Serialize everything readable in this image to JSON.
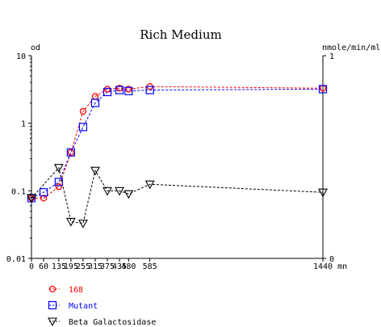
{
  "chart_data": {
    "type": "line",
    "title": "Rich Medium",
    "left_axis_label": "od",
    "right_axis_label": "nmole/min/ml",
    "x_unit": "mn",
    "y_scale_left": "log",
    "ylim_left": [
      0.01,
      10
    ],
    "yticks_left": [
      {
        "value": 0.01,
        "label": "0.01"
      },
      {
        "value": 0.1,
        "label": "0.1"
      },
      {
        "value": 1,
        "label": "1"
      },
      {
        "value": 10,
        "label": "10"
      }
    ],
    "yticks_right": [
      {
        "value": 0,
        "label": "0"
      },
      {
        "value": 1,
        "label": "1"
      }
    ],
    "xlim": [
      0,
      1440
    ],
    "xticks": [
      0,
      60,
      135,
      195,
      255,
      315,
      375,
      435,
      480,
      585,
      1440
    ],
    "grid": false,
    "legend_position": "bottom-left",
    "series": [
      {
        "name": "168",
        "color": "#ff0000",
        "marker": "circle",
        "points": [
          [
            0,
            0.078
          ],
          [
            60,
            0.078
          ],
          [
            135,
            0.115
          ],
          [
            195,
            0.37
          ],
          [
            255,
            1.5
          ],
          [
            315,
            2.5
          ],
          [
            375,
            3.2
          ],
          [
            435,
            3.3
          ],
          [
            480,
            3.2
          ],
          [
            585,
            3.5
          ],
          [
            1440,
            3.3
          ]
        ]
      },
      {
        "name": "Mutant",
        "color": "#0000ff",
        "marker": "square",
        "points": [
          [
            0,
            0.078
          ],
          [
            60,
            0.095
          ],
          [
            135,
            0.135
          ],
          [
            195,
            0.37
          ],
          [
            255,
            0.88
          ],
          [
            315,
            2.0
          ],
          [
            375,
            2.9
          ],
          [
            435,
            3.1
          ],
          [
            480,
            3.0
          ],
          [
            585,
            3.1
          ],
          [
            1440,
            3.2
          ]
        ]
      },
      {
        "name": "Beta Galactosidase",
        "color": "#000000",
        "marker": "triangle-down",
        "points": [
          [
            0,
            0.078
          ],
          [
            135,
            0.22
          ],
          [
            195,
            0.035
          ],
          [
            255,
            0.033
          ],
          [
            315,
            0.2
          ],
          [
            375,
            0.1
          ],
          [
            435,
            0.1
          ],
          [
            480,
            0.09
          ],
          [
            585,
            0.125
          ],
          [
            1440,
            0.095
          ]
        ]
      }
    ]
  }
}
